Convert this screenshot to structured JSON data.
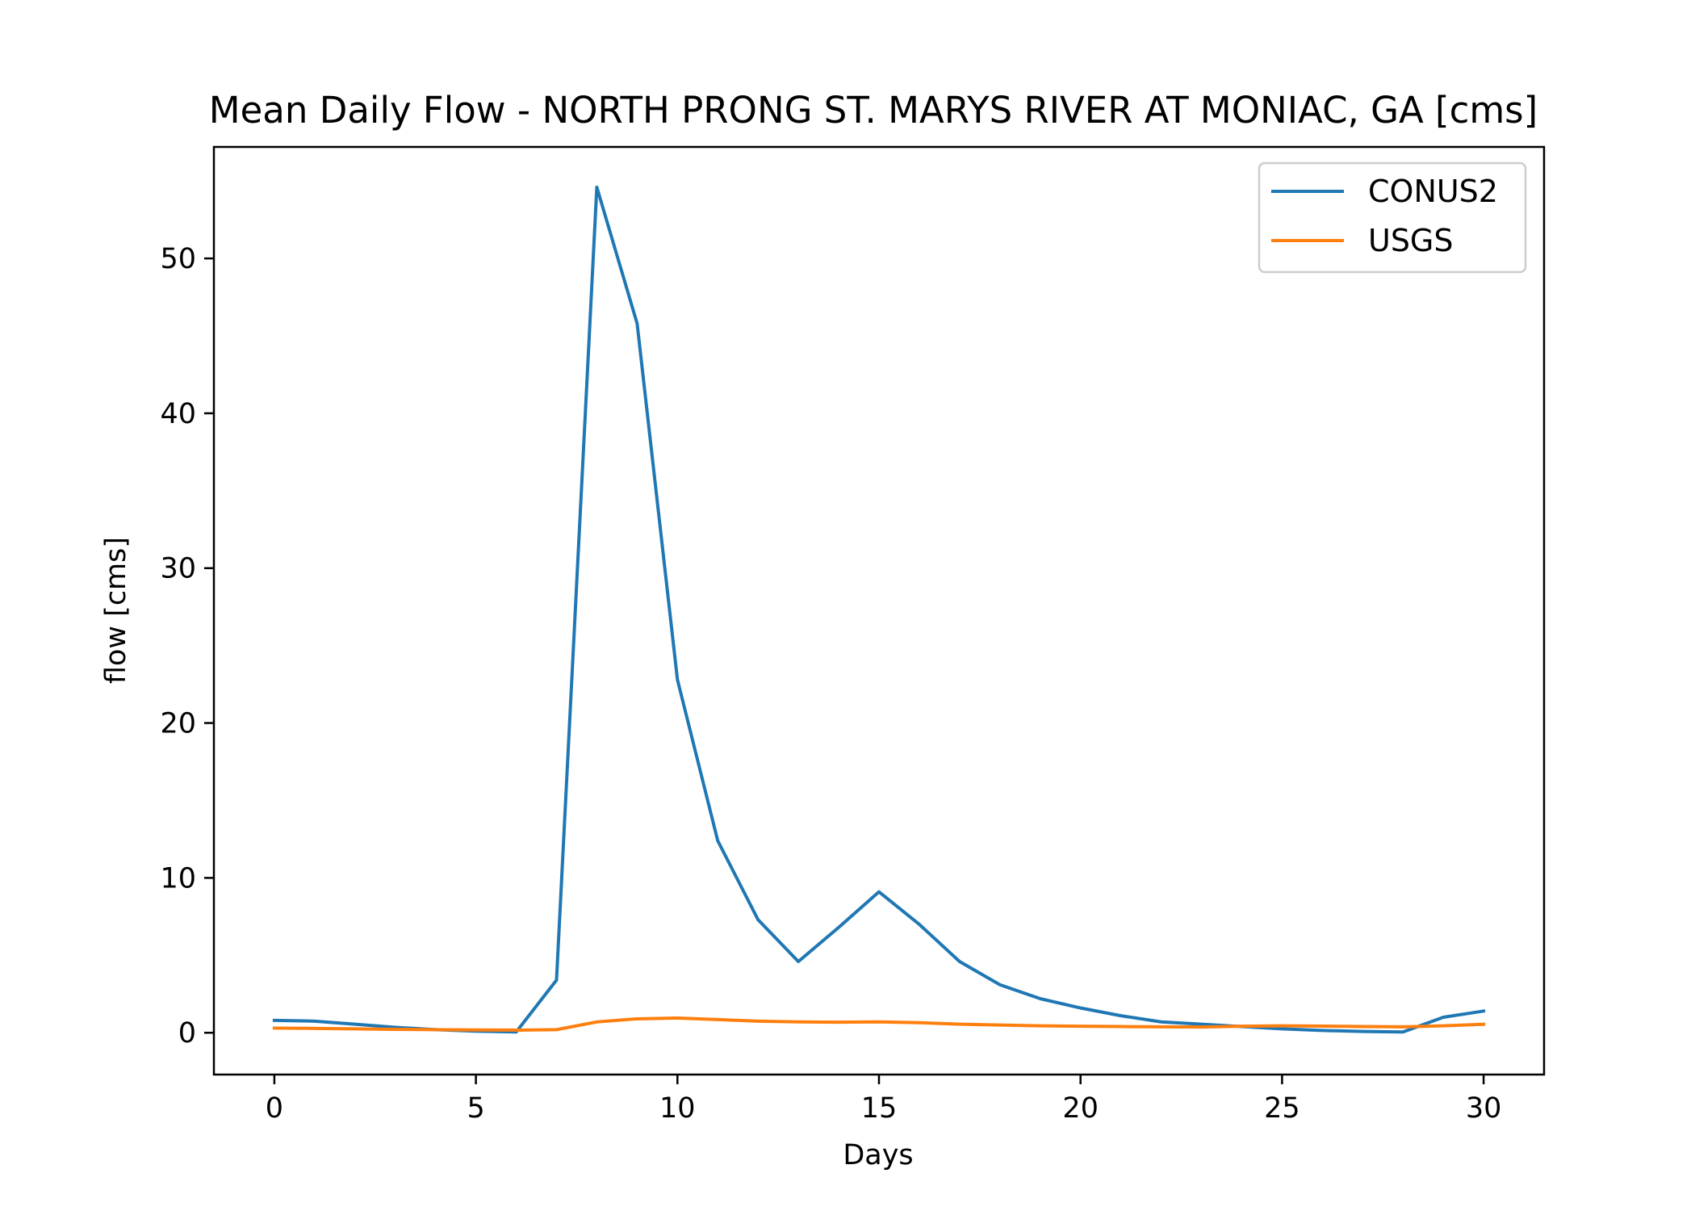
{
  "chart_data": {
    "type": "line",
    "title": "Mean Daily Flow - NORTH PRONG ST. MARYS RIVER AT MONIAC, GA [cms]",
    "xlabel": "Days",
    "ylabel": "flow [cms]",
    "xlim": [
      -1.5,
      31.5
    ],
    "ylim": [
      -2.7,
      57.2
    ],
    "xticks": [
      0,
      5,
      10,
      15,
      20,
      25,
      30
    ],
    "yticks": [
      0,
      10,
      20,
      30,
      40,
      50
    ],
    "grid": false,
    "legend_position": "top-right",
    "x": [
      0,
      1,
      2,
      3,
      4,
      5,
      6,
      7,
      8,
      9,
      10,
      11,
      12,
      13,
      14,
      15,
      16,
      17,
      18,
      19,
      20,
      21,
      22,
      23,
      24,
      25,
      26,
      27,
      28,
      29,
      30
    ],
    "series": [
      {
        "name": "CONUS2",
        "color": "#1f77b4",
        "values": [
          0.8,
          0.75,
          0.55,
          0.35,
          0.2,
          0.1,
          0.05,
          3.4,
          54.6,
          45.8,
          22.8,
          12.4,
          7.3,
          4.6,
          6.8,
          9.1,
          7.0,
          4.6,
          3.1,
          2.2,
          1.6,
          1.1,
          0.7,
          0.55,
          0.4,
          0.25,
          0.15,
          0.08,
          0.05,
          1.0,
          1.4
        ]
      },
      {
        "name": "USGS",
        "color": "#ff7f0e",
        "values": [
          0.3,
          0.28,
          0.25,
          0.22,
          0.2,
          0.18,
          0.17,
          0.2,
          0.7,
          0.9,
          0.95,
          0.85,
          0.75,
          0.7,
          0.68,
          0.7,
          0.65,
          0.55,
          0.5,
          0.45,
          0.42,
          0.4,
          0.38,
          0.37,
          0.42,
          0.45,
          0.43,
          0.4,
          0.38,
          0.45,
          0.55
        ]
      }
    ]
  }
}
